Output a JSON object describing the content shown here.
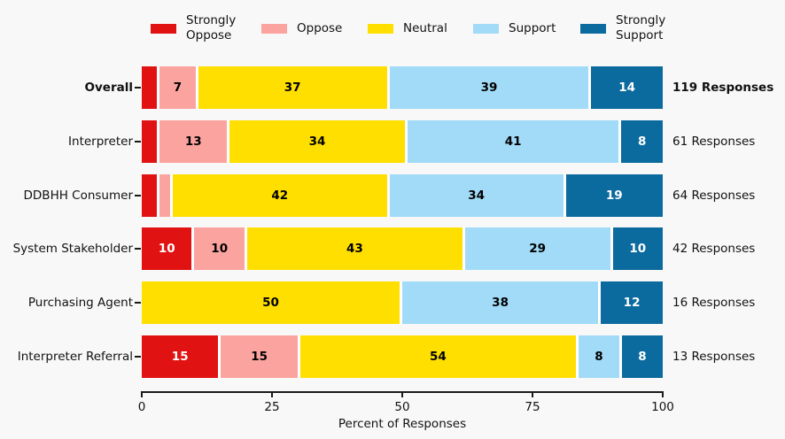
{
  "figure": {
    "background": "#f8f8f8"
  },
  "palette": {
    "strongly_oppose": "#e01212",
    "oppose": "#fba49f",
    "neutral": "#ffdf00",
    "support": "#a1dbf8",
    "strongly_support": "#0c6b9e",
    "axis": "#1a1a1a",
    "segment_divider": "#ffffff"
  },
  "legend": {
    "items": [
      {
        "name": "strongly-oppose",
        "label": "Strongly\nOppose",
        "color_key": "strongly_oppose"
      },
      {
        "name": "oppose",
        "label": "Oppose",
        "color_key": "oppose"
      },
      {
        "name": "neutral",
        "label": "Neutral",
        "color_key": "neutral"
      },
      {
        "name": "support",
        "label": "Support",
        "color_key": "support"
      },
      {
        "name": "strongly-support",
        "label": "Strongly\nSupport",
        "color_key": "strongly_support"
      }
    ]
  },
  "axis": {
    "xlabel": "Percent of Responses",
    "ticks": [
      0,
      25,
      50,
      75,
      100
    ],
    "xlim": [
      0,
      100
    ]
  },
  "chart_data": {
    "type": "bar",
    "subtype": "horizontal_stacked_percent",
    "legend_position": "top",
    "grid": false,
    "series_names": [
      "Strongly Oppose",
      "Oppose",
      "Neutral",
      "Support",
      "Strongly Support"
    ],
    "series_color_keys": [
      "strongly_oppose",
      "oppose",
      "neutral",
      "support",
      "strongly_support"
    ],
    "label_text_colors": [
      "#ffffff",
      "#000000",
      "#000000",
      "#000000",
      "#ffffff"
    ],
    "categories": [
      "Overall",
      "Interpreter",
      "DDBHH Consumer",
      "System Stakeholder",
      "Purchasing Agent",
      "Interpreter Referral"
    ],
    "rows": [
      {
        "category": "Overall",
        "category_bold": true,
        "responses_label": "119 Responses",
        "responses_bold": true,
        "values": [
          3,
          7,
          37,
          39,
          14
        ],
        "value_labels": [
          "",
          "7",
          "37",
          "39",
          "14"
        ]
      },
      {
        "category": "Interpreter",
        "category_bold": false,
        "responses_label": "61 Responses",
        "responses_bold": false,
        "values": [
          3,
          13,
          34,
          41,
          8
        ],
        "value_labels": [
          "",
          "13",
          "34",
          "41",
          "8"
        ]
      },
      {
        "category": "DDBHH Consumer",
        "category_bold": false,
        "responses_label": "64 Responses",
        "responses_bold": false,
        "values": [
          3,
          2,
          42,
          34,
          19
        ],
        "value_labels": [
          "",
          "",
          "42",
          "34",
          "19"
        ]
      },
      {
        "category": "System Stakeholder",
        "category_bold": false,
        "responses_label": "42 Responses",
        "responses_bold": false,
        "values": [
          10,
          10,
          43,
          29,
          10
        ],
        "value_labels": [
          "10",
          "10",
          "43",
          "29",
          "10"
        ]
      },
      {
        "category": "Purchasing Agent",
        "category_bold": false,
        "responses_label": "16 Responses",
        "responses_bold": false,
        "values": [
          0,
          0,
          50,
          38,
          12
        ],
        "value_labels": [
          "",
          "",
          "50",
          "38",
          "12"
        ]
      },
      {
        "category": "Interpreter Referral",
        "category_bold": false,
        "responses_label": "13 Responses",
        "responses_bold": false,
        "values": [
          15,
          15,
          54,
          8,
          8
        ],
        "value_labels": [
          "15",
          "15",
          "54",
          "8",
          "8"
        ]
      }
    ]
  }
}
